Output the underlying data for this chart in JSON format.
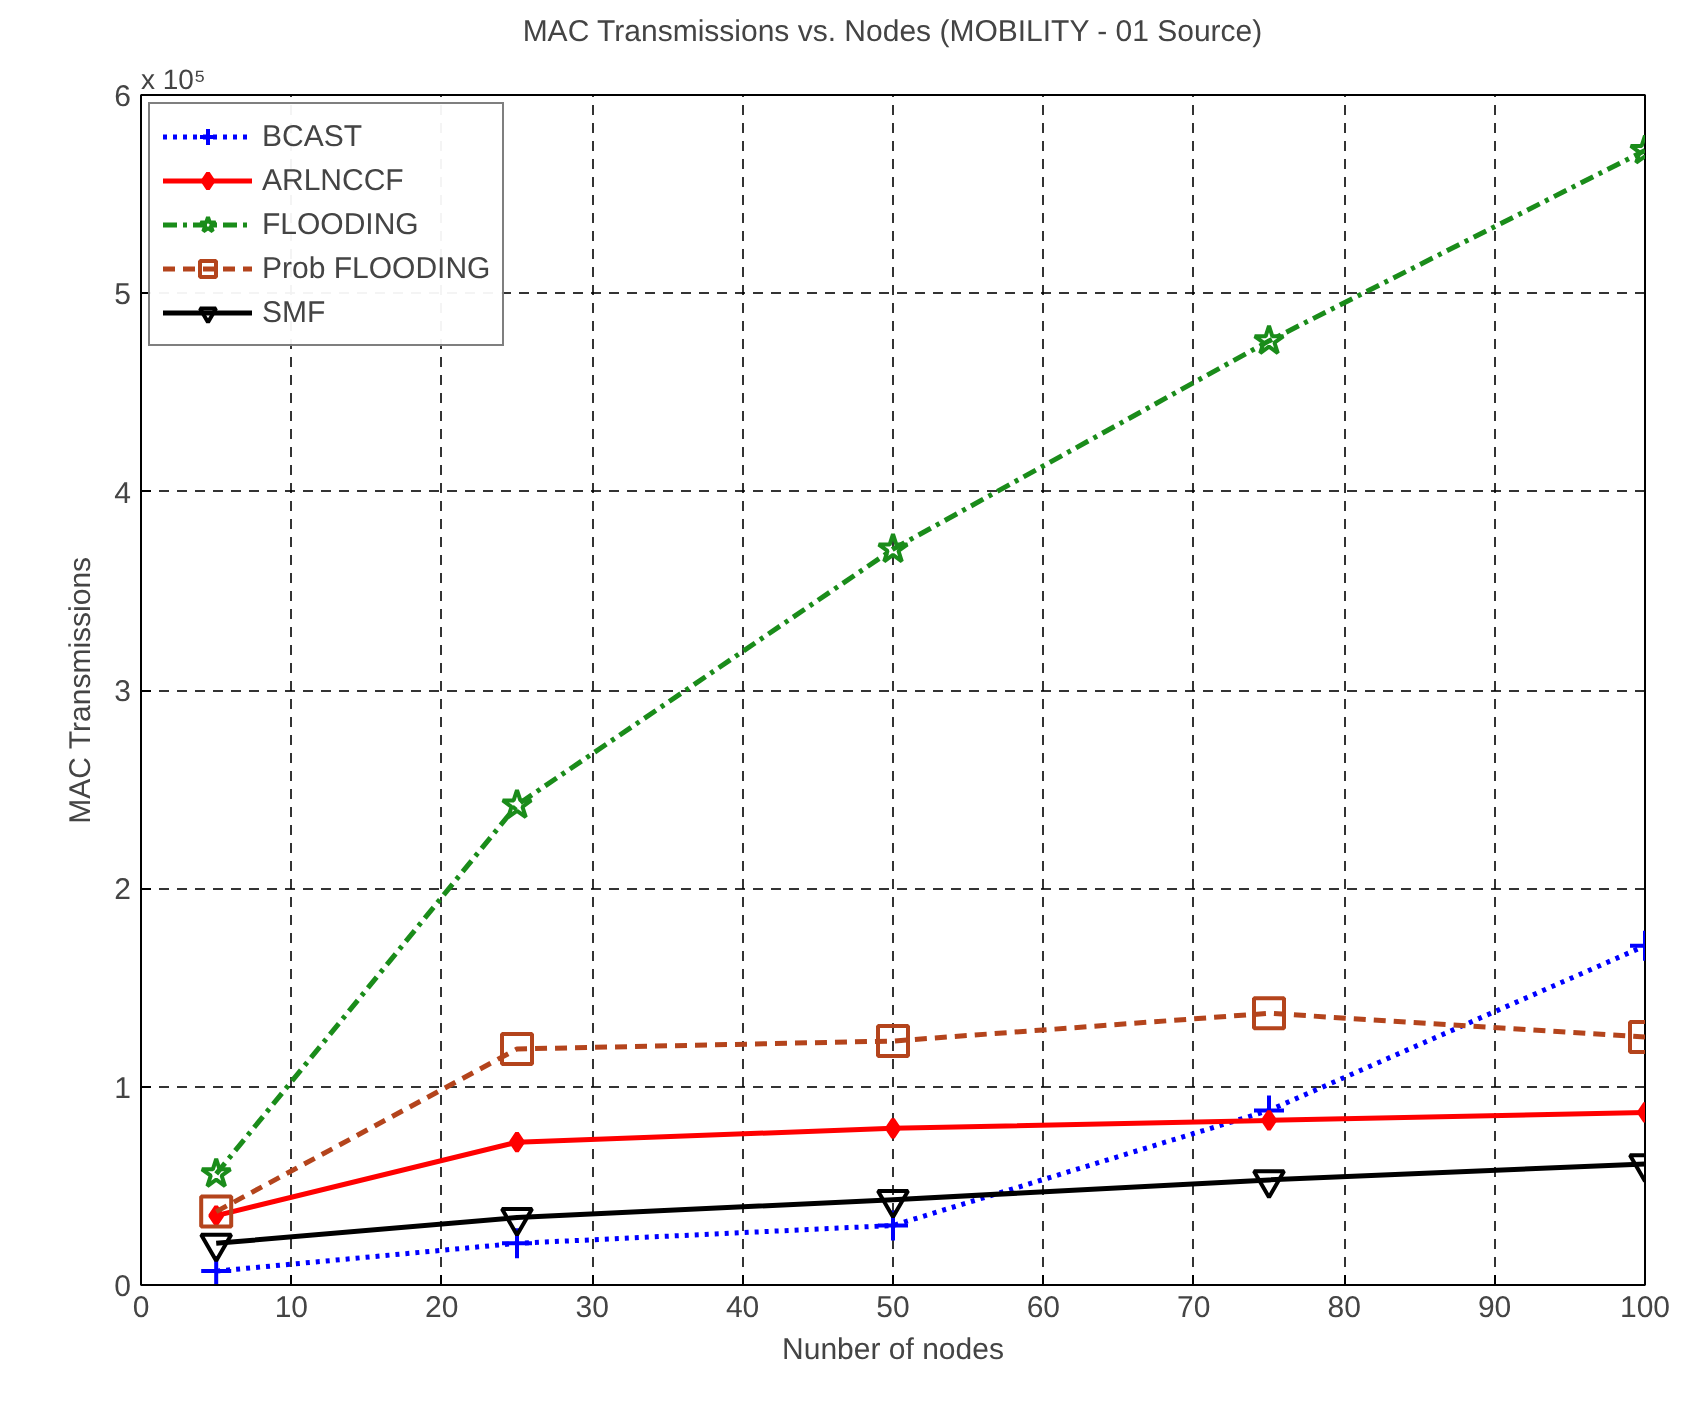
{
  "chart_data": {
    "type": "line",
    "title": "MAC Transmissions vs. Nodes (MOBILITY - 01 Source)",
    "xlabel": "Nunber of nodes",
    "ylabel": "MAC Transmissions",
    "annotations": [
      "x 10⁵"
    ],
    "x": [
      5,
      25,
      50,
      75,
      100
    ],
    "series": [
      {
        "name": "BCAST",
        "color": "#0000ff",
        "marker": "cross",
        "line_style": "dotted",
        "values": [
          0.07,
          0.21,
          0.3,
          0.88,
          1.71
        ]
      },
      {
        "name": "ARLNCCF",
        "color": "#ff0000",
        "marker": "diamond",
        "line_style": "solid",
        "values": [
          0.35,
          0.72,
          0.79,
          0.83,
          0.87
        ]
      },
      {
        "name": "FLOODING",
        "color": "#1a8c1a",
        "marker": "star",
        "line_style": "dashdot",
        "values": [
          0.56,
          2.42,
          3.71,
          4.76,
          5.72
        ]
      },
      {
        "name": "Prob FLOODING",
        "color": "#b4441c",
        "marker": "square",
        "line_style": "dashed",
        "values": [
          0.37,
          1.19,
          1.23,
          1.37,
          1.25
        ]
      },
      {
        "name": "SMF",
        "color": "#000000",
        "marker": "triangle",
        "line_style": "solid",
        "values": [
          0.21,
          0.34,
          0.43,
          0.53,
          0.61
        ]
      }
    ],
    "xlim": [
      0,
      100
    ],
    "xticks": [
      0,
      10,
      20,
      30,
      40,
      50,
      60,
      70,
      80,
      90,
      100
    ],
    "ylim": [
      0,
      6
    ],
    "yticks": [
      0,
      1,
      2,
      3,
      4,
      5,
      6
    ],
    "grid": true,
    "legend": "top left"
  }
}
